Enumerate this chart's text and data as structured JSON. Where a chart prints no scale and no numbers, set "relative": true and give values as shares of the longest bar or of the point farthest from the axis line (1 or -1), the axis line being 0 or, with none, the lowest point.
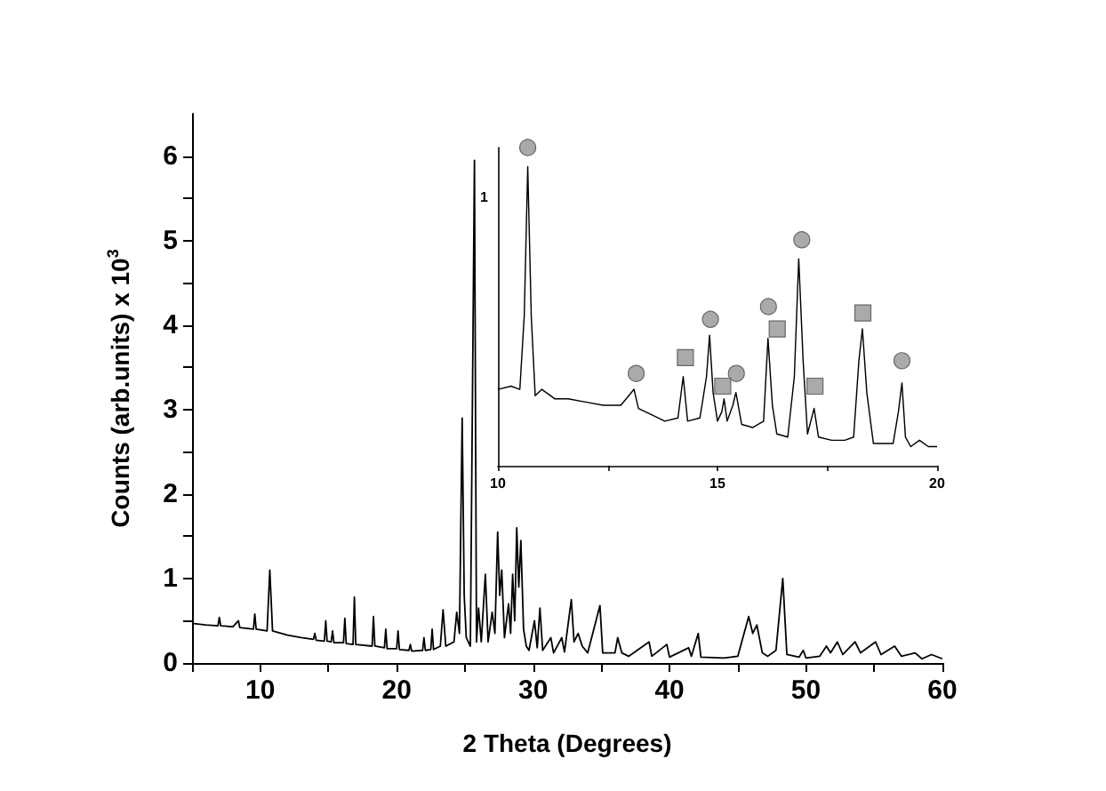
{
  "chart_data": [
    {
      "type": "line",
      "xlabel": "2 Theta (Degrees)",
      "ylabel": "Counts (arb.units) x 10$^{3}$",
      "xlim": [
        5,
        60
      ],
      "xticks": [
        {
          "value": 5,
          "label": null
        },
        10,
        {
          "value": 15,
          "label": null
        },
        20,
        {
          "value": 25,
          "label": null
        },
        30,
        {
          "value": 35,
          "label": null
        },
        40,
        {
          "value": 45,
          "label": null
        },
        50,
        {
          "value": 55,
          "label": null
        },
        60
      ],
      "ylim": [
        0,
        6.5
      ],
      "yticks": [
        0,
        {
          "value": 0.5,
          "label": null
        },
        1,
        {
          "value": 1.5,
          "label": null
        },
        2,
        {
          "value": 2.5,
          "label": null
        },
        3,
        {
          "value": 3.5,
          "label": null
        },
        4,
        {
          "value": 4.5,
          "label": null
        },
        5,
        {
          "value": 5.5,
          "label": null
        },
        6
      ],
      "marker": "none",
      "series": [
        {
          "color": "#000000",
          "x": [
            5.0,
            6.0,
            6.9,
            7.0,
            7.1,
            8.0,
            8.4,
            8.5,
            9.5,
            9.6,
            9.7,
            10.5,
            10.7,
            10.9,
            12.0,
            13.0,
            13.9,
            14.0,
            14.1,
            14.7,
            14.8,
            14.9,
            15.2,
            15.3,
            15.4,
            16.1,
            16.2,
            16.3,
            16.8,
            16.9,
            17.0,
            18.2,
            18.3,
            18.4,
            19.1,
            19.2,
            19.3,
            20.0,
            20.1,
            20.2,
            20.9,
            21.0,
            21.1,
            21.9,
            22.0,
            22.1,
            22.5,
            22.6,
            22.7,
            23.2,
            23.4,
            23.6,
            24.2,
            24.4,
            24.6,
            24.8,
            24.95,
            25.1,
            25.4,
            25.7,
            25.85,
            26.0,
            26.2,
            26.5,
            26.7,
            27.0,
            27.2,
            27.4,
            27.55,
            27.7,
            27.9,
            28.2,
            28.35,
            28.5,
            28.65,
            28.8,
            28.95,
            29.1,
            29.3,
            29.5,
            29.7,
            30.1,
            30.3,
            30.5,
            30.7,
            31.3,
            31.5,
            32.1,
            32.3,
            32.8,
            33.0,
            33.3,
            33.6,
            34.0,
            34.9,
            35.1,
            36.0,
            36.2,
            36.5,
            37.0,
            38.5,
            38.7,
            39.8,
            40.0,
            41.4,
            41.6,
            42.1,
            42.3,
            44.0,
            45.0,
            45.8,
            46.1,
            46.4,
            46.8,
            47.2,
            47.8,
            48.3,
            48.6,
            49.5,
            49.8,
            50.0,
            51.0,
            51.5,
            51.8,
            52.3,
            52.7,
            53.6,
            54.0,
            55.1,
            55.5,
            56.5,
            57.0,
            58.0,
            58.5,
            59.2,
            60.0
          ],
          "values": [
            0.47,
            0.45,
            0.44,
            0.54,
            0.44,
            0.43,
            0.5,
            0.42,
            0.4,
            0.58,
            0.4,
            0.38,
            1.1,
            0.38,
            0.33,
            0.3,
            0.28,
            0.35,
            0.27,
            0.26,
            0.5,
            0.26,
            0.25,
            0.38,
            0.24,
            0.24,
            0.53,
            0.23,
            0.22,
            0.78,
            0.22,
            0.2,
            0.55,
            0.2,
            0.18,
            0.4,
            0.17,
            0.17,
            0.38,
            0.16,
            0.15,
            0.22,
            0.14,
            0.15,
            0.3,
            0.15,
            0.16,
            0.4,
            0.16,
            0.2,
            0.63,
            0.2,
            0.25,
            0.6,
            0.35,
            2.9,
            0.8,
            0.3,
            0.2,
            5.95,
            0.25,
            0.65,
            0.25,
            1.05,
            0.25,
            0.6,
            0.35,
            1.55,
            0.8,
            1.1,
            0.3,
            0.7,
            0.35,
            1.05,
            0.5,
            1.6,
            0.9,
            1.45,
            0.4,
            0.2,
            0.15,
            0.5,
            0.18,
            0.65,
            0.15,
            0.3,
            0.12,
            0.3,
            0.13,
            0.75,
            0.25,
            0.35,
            0.2,
            0.12,
            0.68,
            0.12,
            0.12,
            0.3,
            0.12,
            0.08,
            0.25,
            0.08,
            0.22,
            0.07,
            0.18,
            0.08,
            0.35,
            0.07,
            0.06,
            0.08,
            0.55,
            0.35,
            0.45,
            0.12,
            0.08,
            0.15,
            1.0,
            0.1,
            0.07,
            0.15,
            0.06,
            0.08,
            0.2,
            0.12,
            0.25,
            0.1,
            0.25,
            0.12,
            0.25,
            0.1,
            0.2,
            0.08,
            0.12,
            0.05,
            0.1,
            0.05
          ]
        }
      ]
    },
    {
      "type": "line",
      "xlim": [
        10,
        20
      ],
      "xticks": [
        10,
        {
          "value": 12.5,
          "label": null
        },
        15,
        {
          "value": 17.5,
          "label": null
        },
        20
      ],
      "relative": true,
      "annotations": [
        "1"
      ],
      "series": [
        {
          "color": "#000000",
          "marker": "none",
          "x": [
            10.0,
            10.3,
            10.5,
            10.6,
            10.68,
            10.76,
            10.85,
            11.0,
            11.3,
            11.6,
            12.0,
            12.4,
            12.8,
            13.1,
            13.2,
            13.5,
            13.8,
            14.1,
            14.22,
            14.32,
            14.6,
            14.75,
            14.82,
            14.9,
            15.0,
            15.1,
            15.15,
            15.22,
            15.35,
            15.42,
            15.55,
            15.8,
            16.05,
            16.15,
            16.25,
            16.35,
            16.6,
            16.75,
            16.85,
            16.95,
            17.05,
            17.2,
            17.3,
            17.6,
            17.9,
            18.1,
            18.22,
            18.3,
            18.4,
            18.55,
            18.8,
            19.0,
            19.12,
            19.2,
            19.28,
            19.4,
            19.6,
            19.8,
            20.0
          ],
          "values": [
            0.24,
            0.25,
            0.24,
            0.47,
            0.94,
            0.47,
            0.22,
            0.24,
            0.21,
            0.21,
            0.2,
            0.19,
            0.19,
            0.24,
            0.18,
            0.16,
            0.14,
            0.15,
            0.28,
            0.14,
            0.15,
            0.28,
            0.41,
            0.23,
            0.14,
            0.17,
            0.21,
            0.14,
            0.19,
            0.23,
            0.13,
            0.12,
            0.14,
            0.4,
            0.19,
            0.1,
            0.09,
            0.28,
            0.65,
            0.33,
            0.1,
            0.18,
            0.09,
            0.08,
            0.08,
            0.09,
            0.33,
            0.43,
            0.23,
            0.07,
            0.07,
            0.07,
            0.17,
            0.26,
            0.09,
            0.06,
            0.08,
            0.06,
            0.06
          ]
        },
        {
          "type": "scatter",
          "marker": "circle",
          "color": "#aaaaaa",
          "x": [
            10.68,
            13.15,
            14.84,
            15.43,
            16.16,
            16.92,
            19.2
          ],
          "values": [
            1.0,
            0.29,
            0.46,
            0.29,
            0.5,
            0.71,
            0.33
          ]
        },
        {
          "type": "scatter",
          "marker": "square",
          "color": "#aaaaaa",
          "x": [
            14.27,
            15.12,
            16.36,
            17.22,
            18.31
          ],
          "values": [
            0.34,
            0.25,
            0.43,
            0.25,
            0.48
          ]
        }
      ]
    }
  ]
}
